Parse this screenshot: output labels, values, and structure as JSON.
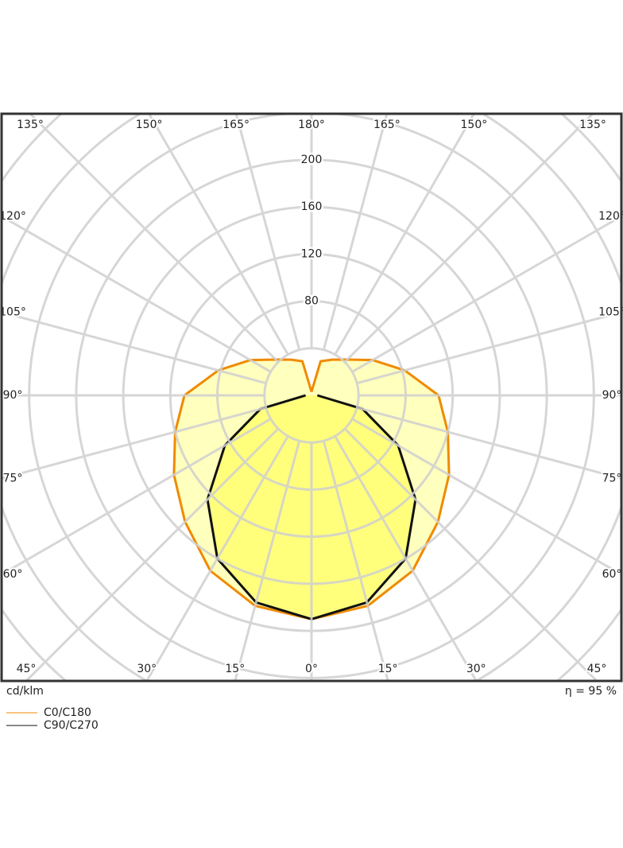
{
  "chart_data": {
    "type": "polar",
    "unit_label": "cd/klm",
    "efficiency_label": "η = 95 %",
    "angles": [
      0,
      15,
      30,
      45,
      60,
      75,
      90,
      105,
      120,
      135,
      150,
      165,
      180
    ],
    "series": [
      {
        "name": "C0/C180",
        "color": "#f08a00",
        "fill": "#ffffa8",
        "values": [
          190,
          185,
          172,
          152,
          135,
          120,
          108,
          82,
          60,
          43,
          35,
          30,
          3
        ]
      },
      {
        "name": "C90/C270",
        "color": "#111111",
        "fill": "#ffff66",
        "values": [
          190,
          182,
          160,
          125,
          85,
          45,
          5,
          null,
          null,
          null,
          null,
          null,
          null
        ]
      }
    ],
    "rlim": [
      0,
      360
    ],
    "rgrid": [
      40,
      80,
      120,
      160,
      200,
      240,
      280,
      320,
      360
    ],
    "rticks": [
      80,
      120,
      160,
      200
    ],
    "angle_ticks": [
      {
        "value": 0,
        "label": "0°"
      },
      {
        "value": 15,
        "label": "15°"
      },
      {
        "value": 30,
        "label": "30°"
      },
      {
        "value": 45,
        "label": "45°"
      },
      {
        "value": 60,
        "label": "60°"
      },
      {
        "value": 75,
        "label": "75°"
      },
      {
        "value": 90,
        "label": "90°"
      },
      {
        "value": 105,
        "label": "105°"
      },
      {
        "value": 120,
        "label": "120°"
      },
      {
        "value": 135,
        "label": "135°"
      },
      {
        "value": 150,
        "label": "150°"
      },
      {
        "value": 165,
        "label": "165°"
      },
      {
        "value": 180,
        "label": "180°"
      }
    ],
    "grid": true
  }
}
